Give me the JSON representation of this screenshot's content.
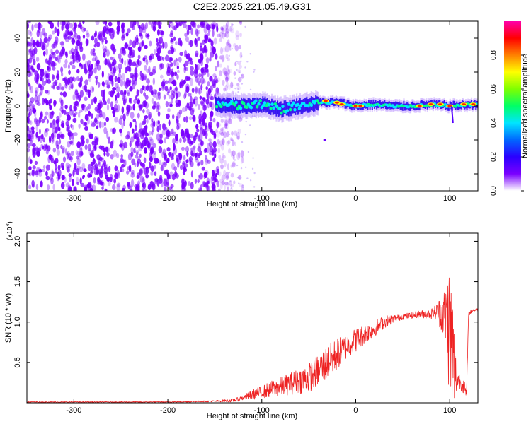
{
  "title": "C2E2.2025.221.05.49.G31",
  "chart_data": [
    {
      "type": "heatmap",
      "title": "C2E2.2025.221.05.49.G31",
      "xlabel": "Height of straight line (km)",
      "ylabel": "Frequency (Hz)",
      "xlim": [
        -350,
        130
      ],
      "ylim": [
        -50,
        50
      ],
      "xticks": [
        -300,
        -200,
        -100,
        0,
        100
      ],
      "yticks": [
        -40,
        -20,
        0,
        20,
        40
      ],
      "xtick_labels": [
        "-300",
        "-200",
        "-100",
        "0",
        "100"
      ],
      "ytick_labels": [
        "-40",
        "-20",
        "0",
        "20",
        "40"
      ],
      "colorbar": {
        "label": "Normalized spectral amplitude",
        "range": [
          0,
          1
        ],
        "ticks": [
          0.0,
          0.2,
          0.4,
          0.6,
          0.8
        ],
        "tick_labels": [
          "0.0",
          "0.2",
          "0.4",
          "0.6",
          "0.8"
        ],
        "colors": [
          "#ffffff",
          "#7a00ff",
          "#2a00ff",
          "#0066ff",
          "#00e5ff",
          "#00ff66",
          "#7fff00",
          "#ffff00",
          "#ff8000",
          "#ff0000",
          "#ff00aa"
        ]
      },
      "features": {
        "noise_region_x": [
          -350,
          -135
        ],
        "noise_color": "#7a00ff",
        "carrier_center_hz": [
          [
            -150,
            1
          ],
          [
            -120,
            0
          ],
          [
            -100,
            1
          ],
          [
            -80,
            -2
          ],
          [
            -60,
            0
          ],
          [
            -40,
            2
          ],
          [
            -20,
            2
          ],
          [
            0,
            0
          ],
          [
            20,
            1
          ],
          [
            40,
            0
          ],
          [
            60,
            0
          ],
          [
            80,
            1
          ],
          [
            100,
            0
          ],
          [
            130,
            1
          ]
        ]
      }
    },
    {
      "type": "line",
      "xlabel": "Height of straight line (km)",
      "ylabel": "SNR (10 * v/v)",
      "y_multiplier": "(x10",
      "y_multiplier_exp": "4",
      "y_multiplier_close": ")",
      "xlim": [
        -350,
        130
      ],
      "ylim": [
        0,
        2.1
      ],
      "xticks": [
        -300,
        -200,
        -100,
        0,
        100
      ],
      "yticks": [
        0.5,
        1.0,
        1.5,
        2.0
      ],
      "xtick_labels": [
        "-300",
        "-200",
        "-100",
        "0",
        "100"
      ],
      "ytick_labels": [
        "0.5",
        "1.0",
        "1.5",
        "2.0"
      ],
      "color": "#ee2222",
      "envelope": {
        "x": [
          -350,
          -200,
          -150,
          -130,
          -120,
          -110,
          -100,
          -90,
          -80,
          -70,
          -60,
          -50,
          -40,
          -30,
          -20,
          -10,
          0,
          10,
          20,
          30,
          40,
          50,
          60,
          70,
          80,
          85,
          90,
          95,
          100,
          103,
          105,
          107,
          110,
          115,
          118,
          120,
          125,
          130
        ],
        "base": [
          0.01,
          0.01,
          0.02,
          0.03,
          0.06,
          0.1,
          0.13,
          0.17,
          0.2,
          0.24,
          0.27,
          0.31,
          0.4,
          0.5,
          0.6,
          0.7,
          0.78,
          0.85,
          0.92,
          1.0,
          1.04,
          1.07,
          1.08,
          1.1,
          1.1,
          1.12,
          1.12,
          1.1,
          0.9,
          0.6,
          0.35,
          0.3,
          0.28,
          0.2,
          0.1,
          1.1,
          1.15,
          1.15
        ],
        "amp": [
          0.005,
          0.005,
          0.01,
          0.02,
          0.03,
          0.06,
          0.08,
          0.1,
          0.12,
          0.14,
          0.16,
          0.18,
          0.2,
          0.22,
          0.2,
          0.15,
          0.15,
          0.12,
          0.1,
          0.08,
          0.05,
          0.04,
          0.04,
          0.05,
          0.06,
          0.1,
          0.2,
          0.35,
          0.9,
          0.9,
          0.6,
          0.2,
          0.1,
          0.1,
          0.05,
          0.03,
          0.02,
          0.02
        ]
      }
    }
  ]
}
